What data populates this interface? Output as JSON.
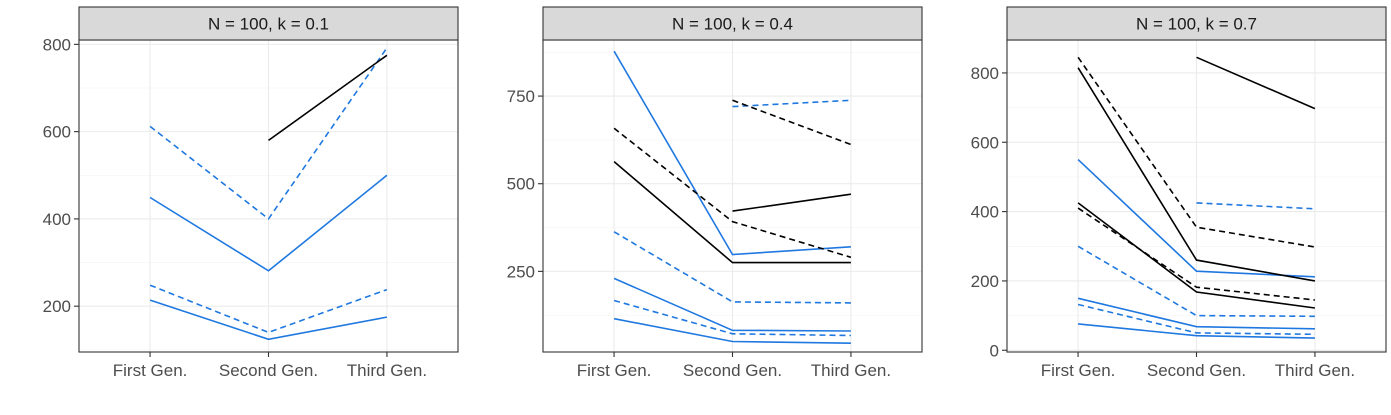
{
  "colors": {
    "blue": "#1f78e0",
    "black": "#000000"
  },
  "chart_data": [
    {
      "type": "line",
      "title": "N = 100, k = 0.1",
      "categories": [
        "First Gen.",
        "Second Gen.",
        "Third Gen."
      ],
      "ylim": [
        95,
        810
      ],
      "yticks": [
        200,
        400,
        600,
        800
      ],
      "grid": true,
      "series": [
        {
          "color": "#1f78e0",
          "dash": false,
          "values": [
            449,
            281,
            500
          ]
        },
        {
          "color": "#1f78e0",
          "dash": true,
          "values": [
            612,
            400,
            792
          ]
        },
        {
          "color": "#1f78e0",
          "dash": true,
          "values": [
            248,
            140,
            238
          ]
        },
        {
          "color": "#1f78e0",
          "dash": false,
          "values": [
            214,
            124,
            175
          ]
        },
        {
          "color": "#000000",
          "dash": false,
          "values": [
            null,
            580,
            775
          ]
        }
      ]
    },
    {
      "type": "line",
      "title": "N = 100, k = 0.4",
      "categories": [
        "First Gen.",
        "Second Gen.",
        "Third Gen."
      ],
      "ylim": [
        20,
        910
      ],
      "yticks": [
        250,
        500,
        750
      ],
      "grid": true,
      "series": [
        {
          "color": "#1f78e0",
          "dash": false,
          "values": [
            878,
            298,
            320
          ]
        },
        {
          "color": "#1f78e0",
          "dash": true,
          "values": [
            363,
            163,
            160
          ]
        },
        {
          "color": "#1f78e0",
          "dash": false,
          "values": [
            230,
            82,
            80
          ]
        },
        {
          "color": "#1f78e0",
          "dash": true,
          "values": [
            167,
            72,
            67
          ]
        },
        {
          "color": "#1f78e0",
          "dash": false,
          "values": [
            115,
            50,
            45
          ]
        },
        {
          "color": "#1f78e0",
          "dash": true,
          "values": [
            null,
            720,
            738
          ]
        },
        {
          "color": "#000000",
          "dash": true,
          "values": [
            658,
            392,
            290
          ]
        },
        {
          "color": "#000000",
          "dash": false,
          "values": [
            563,
            275,
            275
          ]
        },
        {
          "color": "#000000",
          "dash": false,
          "values": [
            null,
            422,
            470
          ]
        },
        {
          "color": "#000000",
          "dash": true,
          "values": [
            null,
            738,
            612
          ]
        }
      ]
    },
    {
      "type": "line",
      "title": "N = 100, k = 0.7",
      "categories": [
        "First Gen.",
        "Second Gen.",
        "Third Gen."
      ],
      "ylim": [
        -5,
        895
      ],
      "yticks": [
        0,
        200,
        400,
        600,
        800
      ],
      "grid": true,
      "series": [
        {
          "color": "#1f78e0",
          "dash": false,
          "values": [
            550,
            228,
            212
          ]
        },
        {
          "color": "#1f78e0",
          "dash": true,
          "values": [
            300,
            100,
            98
          ]
        },
        {
          "color": "#1f78e0",
          "dash": false,
          "values": [
            150,
            68,
            62
          ]
        },
        {
          "color": "#1f78e0",
          "dash": true,
          "values": [
            132,
            50,
            46
          ]
        },
        {
          "color": "#1f78e0",
          "dash": false,
          "values": [
            76,
            42,
            35
          ]
        },
        {
          "color": "#1f78e0",
          "dash": true,
          "values": [
            null,
            425,
            408
          ]
        },
        {
          "color": "#000000",
          "dash": false,
          "values": [
            815,
            260,
            200
          ]
        },
        {
          "color": "#000000",
          "dash": true,
          "values": [
            845,
            355,
            298
          ]
        },
        {
          "color": "#000000",
          "dash": false,
          "values": [
            425,
            168,
            122
          ]
        },
        {
          "color": "#000000",
          "dash": true,
          "values": [
            410,
            182,
            145
          ]
        },
        {
          "color": "#000000",
          "dash": false,
          "values": [
            null,
            845,
            697
          ]
        }
      ]
    }
  ]
}
